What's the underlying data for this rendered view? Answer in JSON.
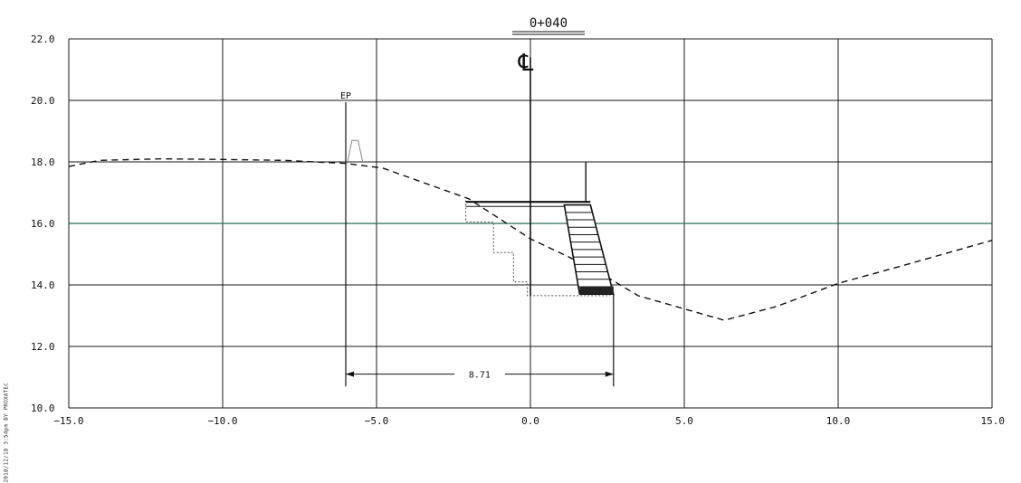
{
  "station_label": "0+040",
  "centerline_symbol": "℄",
  "ep_label": "EP",
  "dimension_label": "8.71",
  "side_stamp": "2018/12/18 3:54pm BY PROXATEC",
  "colors": {
    "grid": "#1a1a1a",
    "reference_line": "#2f6b57",
    "ground": "#111111",
    "structure": "#111111",
    "dotted": "#555555"
  },
  "chart_data": {
    "type": "line",
    "xlim": [
      -15.0,
      15.0
    ],
    "ylim": [
      10.0,
      22.0
    ],
    "x_ticks": [
      {
        "value": -15.0,
        "label": "−15.0"
      },
      {
        "value": -10.0,
        "label": "−10.0"
      },
      {
        "value": -5.0,
        "label": "−5.0"
      },
      {
        "value": 0.0,
        "label": "0.0"
      },
      {
        "value": 5.0,
        "label": "5.0"
      },
      {
        "value": 10.0,
        "label": "10.0"
      },
      {
        "value": 15.0,
        "label": "15.0"
      }
    ],
    "y_ticks": [
      {
        "value": 10.0,
        "label": "10.0"
      },
      {
        "value": 12.0,
        "label": "12.0"
      },
      {
        "value": 14.0,
        "label": "14.0"
      },
      {
        "value": 16.0,
        "label": "16.0"
      },
      {
        "value": 18.0,
        "label": "18.0"
      },
      {
        "value": 20.0,
        "label": "20.0"
      },
      {
        "value": 22.0,
        "label": "22.0"
      }
    ],
    "grid": true,
    "reference_elevation": 16.0,
    "ground_profile": [
      [
        -15.0,
        17.85
      ],
      [
        -14.0,
        18.05
      ],
      [
        -12.0,
        18.1
      ],
      [
        -10.0,
        18.08
      ],
      [
        -8.0,
        18.05
      ],
      [
        -6.0,
        17.95
      ],
      [
        -4.8,
        17.8
      ],
      [
        -2.0,
        16.8
      ],
      [
        0.0,
        15.5
      ],
      [
        2.0,
        14.55
      ],
      [
        3.5,
        13.65
      ],
      [
        6.3,
        12.85
      ],
      [
        8.0,
        13.3
      ],
      [
        10.0,
        14.05
      ],
      [
        12.0,
        14.6
      ],
      [
        15.0,
        15.45
      ]
    ],
    "existing_surface": [
      [
        -6.1,
        17.95
      ],
      [
        -5.8,
        18.0
      ]
    ],
    "curb": [
      [
        -5.95,
        17.95
      ],
      [
        -5.8,
        18.7
      ],
      [
        -5.6,
        18.7
      ],
      [
        -5.45,
        18.0
      ]
    ],
    "wall_cap_left": -2.1,
    "wall_cap_right": 1.95,
    "wall_cap_elev": 16.7,
    "wall_cap_bottom_elev": 16.55,
    "wall_face_top": [
      [
        1.1,
        16.6
      ],
      [
        1.95,
        16.6
      ]
    ],
    "wall_face_bottom": [
      [
        1.6,
        13.7
      ],
      [
        2.7,
        13.7
      ]
    ],
    "wall_layers": 12,
    "dotted_excavation": [
      [
        -2.1,
        16.75
      ],
      [
        -2.1,
        16.05
      ],
      [
        -1.2,
        16.05
      ],
      [
        -1.2,
        15.05
      ],
      [
        -0.55,
        15.05
      ],
      [
        -0.55,
        14.1
      ],
      [
        -0.1,
        14.1
      ],
      [
        -0.1,
        13.65
      ],
      [
        2.6,
        13.65
      ]
    ],
    "centerline_x": 0.0,
    "centerline_top": 21.4,
    "ep_x": -6.0,
    "ep_top": 20.0,
    "wall_mast": {
      "x": 1.8,
      "top": 18.0
    },
    "dimension": {
      "x1": -6.0,
      "x2": 2.7,
      "y": 11.1,
      "ext_bottom": 10.7,
      "value": 8.71
    }
  }
}
